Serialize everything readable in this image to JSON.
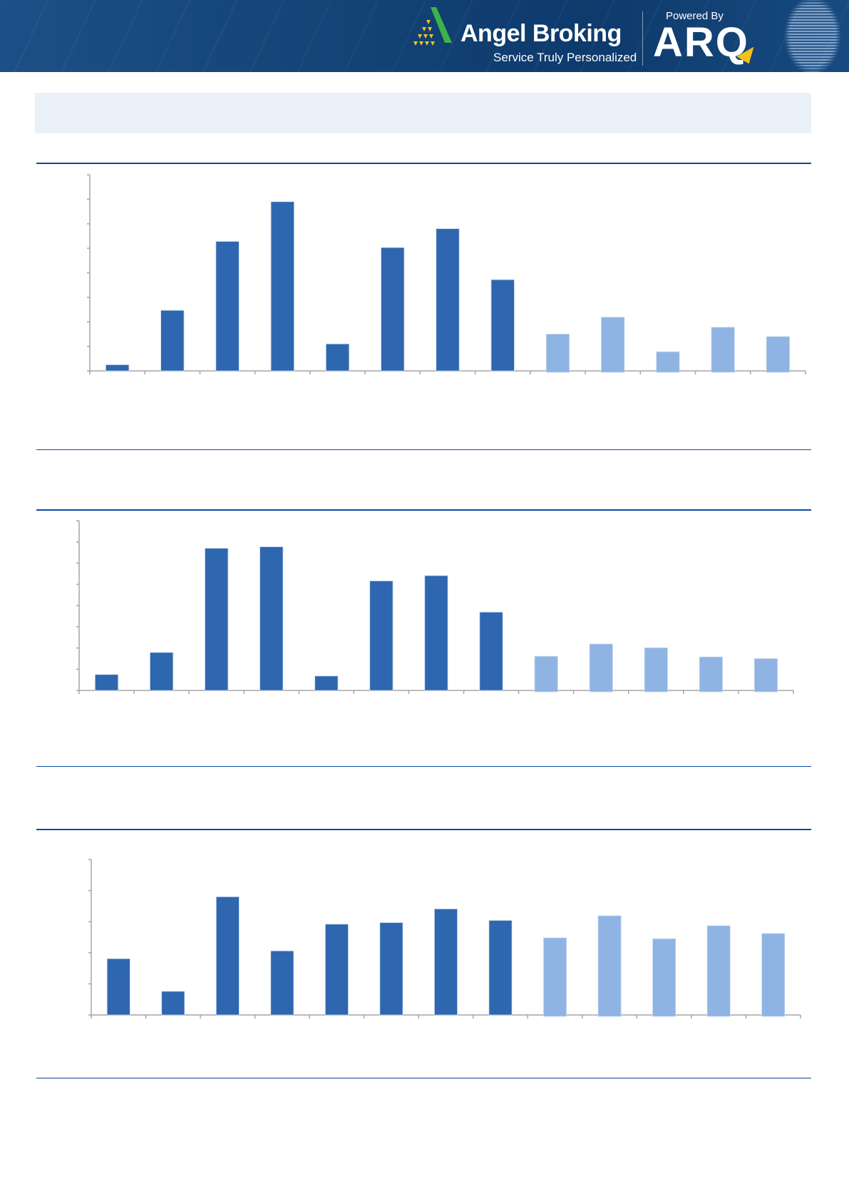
{
  "header": {
    "brand": "Angel Broking",
    "tagline": "Service Truly Personalized",
    "powered_by": "Powered By",
    "partner": "ARQ",
    "colors": {
      "background": "#134377",
      "logo_green": "#3cb24a",
      "logo_yellow": "#f2c21b"
    }
  },
  "title_box": {
    "color": "#eaf1f8"
  },
  "chart_data": [
    {
      "type": "bar",
      "categories": [
        "",
        "",
        "",
        "",
        "",
        "",
        "",
        "",
        "",
        "",
        "",
        "",
        ""
      ],
      "values": [
        0.25,
        2.47,
        5.28,
        6.9,
        1.1,
        5.03,
        5.8,
        3.72,
        1.5,
        2.19,
        0.78,
        1.78,
        1.4
      ],
      "highlight": [
        "actual",
        "actual",
        "actual",
        "actual",
        "actual",
        "actual",
        "actual",
        "actual",
        "estimate",
        "estimate",
        "estimate",
        "estimate",
        "estimate"
      ],
      "ylim": [
        0,
        8
      ],
      "yticks": 8,
      "grid": false,
      "colors": {
        "actual": "#2e66b0",
        "estimate": "#8fb4e3"
      },
      "title": "",
      "xlabel": "",
      "ylabel": ""
    },
    {
      "type": "bar",
      "categories": [
        "",
        "",
        "",
        "",
        "",
        "",
        "",
        "",
        "",
        "",
        "",
        "",
        ""
      ],
      "values": [
        0.75,
        1.79,
        6.7,
        6.77,
        0.68,
        5.16,
        5.41,
        3.69,
        1.61,
        2.19,
        2.01,
        1.58,
        1.5
      ],
      "highlight": [
        "actual",
        "actual",
        "actual",
        "actual",
        "actual",
        "actual",
        "actual",
        "actual",
        "estimate",
        "estimate",
        "estimate",
        "estimate",
        "estimate"
      ],
      "ylim": [
        0,
        8
      ],
      "yticks": 8,
      "grid": false,
      "colors": {
        "actual": "#2e66b0",
        "estimate": "#8fb4e3"
      },
      "title": "",
      "xlabel": "",
      "ylabel": ""
    },
    {
      "type": "bar",
      "categories": [
        "",
        "",
        "",
        "",
        "",
        "",
        "",
        "",
        "",
        "",
        "",
        "",
        ""
      ],
      "values": [
        1.81,
        0.76,
        3.8,
        2.06,
        2.92,
        2.97,
        3.41,
        3.04,
        2.48,
        3.19,
        2.45,
        2.87,
        2.62
      ],
      "highlight": [
        "actual",
        "actual",
        "actual",
        "actual",
        "actual",
        "actual",
        "actual",
        "actual",
        "estimate",
        "estimate",
        "estimate",
        "estimate",
        "estimate"
      ],
      "ylim": [
        0,
        5
      ],
      "yticks": 5,
      "grid": false,
      "colors": {
        "actual": "#2e66b0",
        "estimate": "#8fb4e3"
      },
      "title": "",
      "xlabel": "",
      "ylabel": ""
    }
  ]
}
